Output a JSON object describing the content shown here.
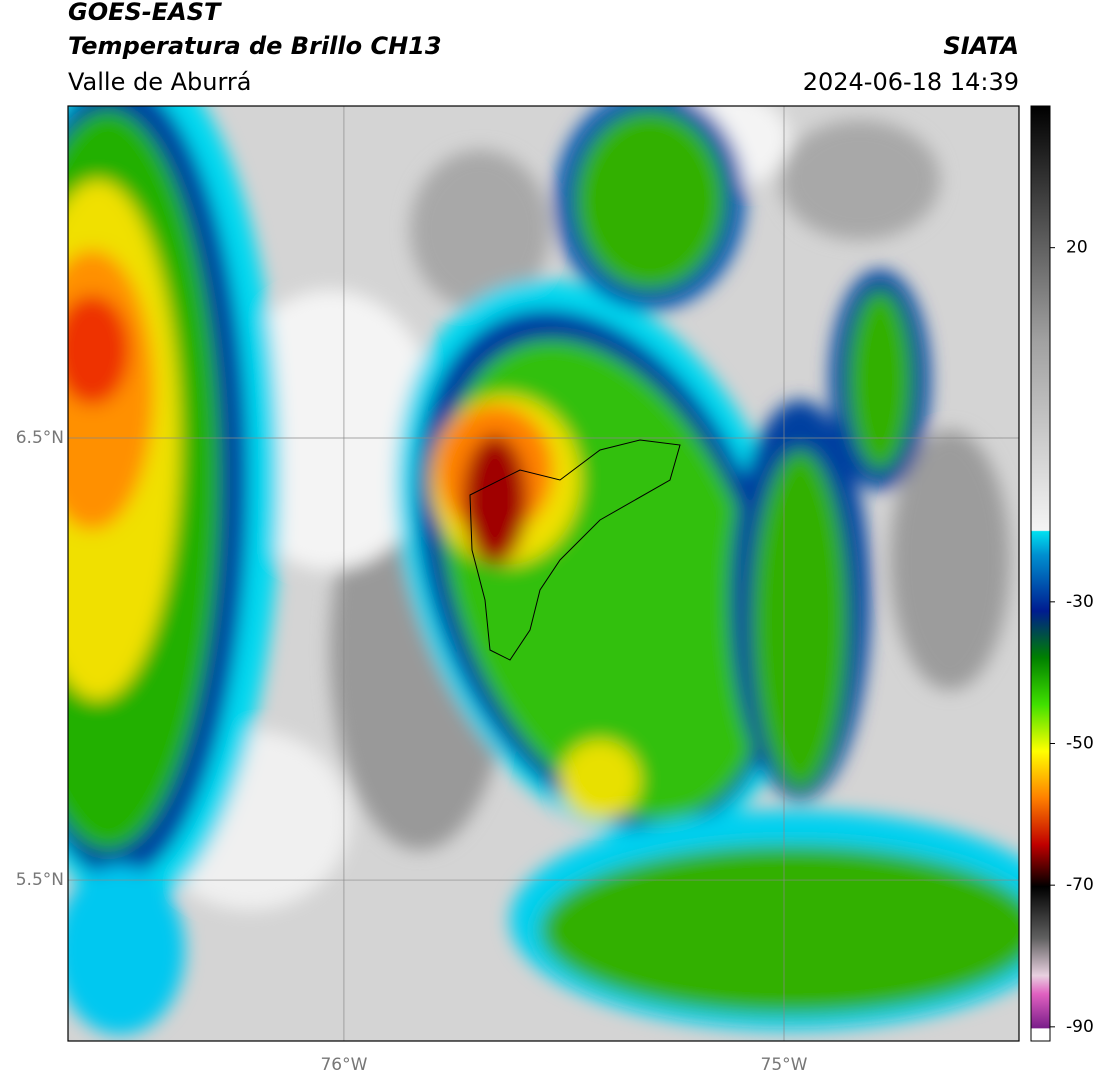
{
  "header": {
    "title": "GOES-EAST",
    "subtitle": "Temperatura de Brillo CH13",
    "region": "Valle de Aburrá",
    "source": "SIATA",
    "datetime": "2024-06-18 14:39"
  },
  "map": {
    "xlim": [
      -76.627,
      -74.466
    ],
    "ylim": [
      5.136,
      7.251
    ],
    "xticks": [
      {
        "value": -76,
        "label": "76°W"
      },
      {
        "value": -75,
        "label": "75°W"
      }
    ],
    "yticks": [
      {
        "value": 6.5,
        "label": "6.5°N"
      },
      {
        "value": 5.5,
        "label": "5.5°N"
      }
    ]
  },
  "colorbar": {
    "lim": [
      -92,
      40
    ],
    "ticks": [
      20,
      -30,
      -50,
      -70,
      -90
    ]
  }
}
